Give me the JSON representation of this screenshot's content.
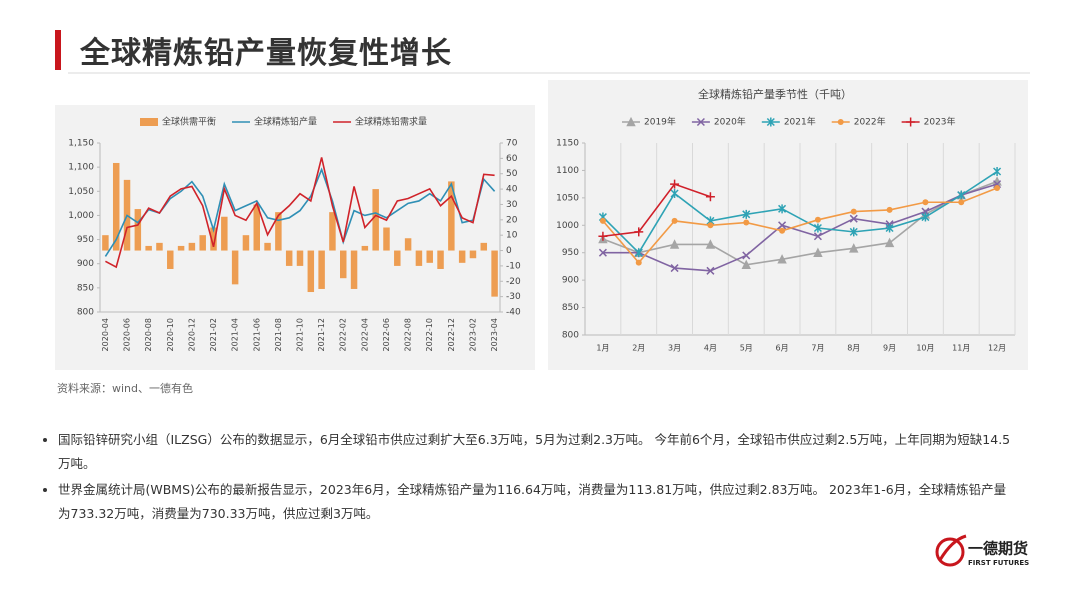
{
  "header": {
    "title": "全球精炼铅产量恢复性增长"
  },
  "chart_data": [
    {
      "type": "combo",
      "categories": [
        "2020-04",
        null,
        "2020-06",
        null,
        "2020-08",
        null,
        "2020-10",
        null,
        "2020-12",
        null,
        "2021-02",
        null,
        "2021-04",
        null,
        "2021-06",
        null,
        "2021-08",
        null,
        "2021-10",
        null,
        "2021-12",
        null,
        "2022-02",
        null,
        "2022-04",
        null,
        "2022-06",
        null,
        "2022-08",
        null,
        "2022-10",
        null,
        "2022-12",
        null,
        "2023-02",
        null,
        "2023-04"
      ],
      "series": [
        {
          "name": "全球供需平衡",
          "type": "bar",
          "axis": "y2",
          "color": "#ed9d52",
          "values": [
            10,
            57,
            46,
            27,
            3,
            5,
            -12,
            3,
            5,
            10,
            15,
            22,
            -22,
            10,
            30,
            5,
            25,
            -10,
            -10,
            -27,
            -25,
            25,
            -18,
            -25,
            3,
            40,
            15,
            -10,
            8,
            -10,
            -8,
            -12,
            45,
            -8,
            -5,
            5,
            -30
          ]
        },
        {
          "name": "全球精炼铅产量",
          "type": "line",
          "color": "#2f8fb5",
          "values": [
            915,
            950,
            1000,
            985,
            1012,
            1005,
            1035,
            1050,
            1070,
            1040,
            970,
            1065,
            1010,
            1020,
            1030,
            995,
            990,
            995,
            1010,
            1040,
            1095,
            1030,
            945,
            1010,
            1000,
            1005,
            995,
            1010,
            1025,
            1030,
            1045,
            1030,
            1065,
            985,
            990,
            1075,
            1050
          ]
        },
        {
          "name": "全球精炼铅需求量",
          "type": "line",
          "color": "#d0232a",
          "values": [
            905,
            893,
            975,
            980,
            1015,
            1005,
            1040,
            1055,
            1060,
            1020,
            935,
            1055,
            1000,
            990,
            1025,
            960,
            1000,
            1020,
            1045,
            1030,
            1120,
            1020,
            945,
            1060,
            975,
            1000,
            990,
            1030,
            1035,
            1045,
            1055,
            1020,
            1040,
            995,
            985,
            1085,
            1083
          ]
        }
      ],
      "ylim": [
        800,
        1150
      ],
      "yticks": [
        800,
        850,
        900,
        950,
        {
          "value": 1000,
          "label": "1,000"
        },
        {
          "value": 1050,
          "label": "1,050"
        },
        {
          "value": 1100,
          "label": "1,100"
        },
        {
          "value": 1150,
          "label": "1,150"
        }
      ],
      "y2lim": [
        -40,
        70
      ],
      "y2ticks": [
        -40,
        -30,
        -20,
        -10,
        0,
        10,
        20,
        30,
        40,
        50,
        60,
        70
      ],
      "grid": false
    },
    {
      "type": "line",
      "title": "全球精炼铅产量季节性（千吨）",
      "categories": [
        "1月",
        "2月",
        "3月",
        "4月",
        "5月",
        "6月",
        "7月",
        "8月",
        "9月",
        "10月",
        "11月",
        "12月"
      ],
      "series": [
        {
          "name": "2019年",
          "color": "#a5a5a5",
          "marker": "triangle",
          "values": [
            975,
            950,
            965,
            965,
            928,
            938,
            950,
            958,
            968,
            1020,
            1055,
            1080
          ]
        },
        {
          "name": "2020年",
          "color": "#8064a2",
          "marker": "cross",
          "values": [
            950,
            950,
            922,
            917,
            945,
            1000,
            980,
            1012,
            1002,
            1025,
            1055,
            1075
          ]
        },
        {
          "name": "2021年",
          "color": "#2ea3b5",
          "marker": "star",
          "values": [
            1015,
            950,
            1058,
            1008,
            1020,
            1030,
            995,
            988,
            995,
            1015,
            1055,
            1098
          ]
        },
        {
          "name": "2022年",
          "color": "#f29a45",
          "marker": "circle",
          "values": [
            1008,
            932,
            1008,
            1000,
            1005,
            990,
            1010,
            1025,
            1028,
            1042,
            1042,
            1068
          ]
        },
        {
          "name": "2023年",
          "color": "#d0202a",
          "marker": "plus",
          "values": [
            980,
            988,
            1075,
            1052,
            null,
            null,
            null,
            null,
            null,
            null,
            null,
            null
          ]
        }
      ],
      "ylim": [
        800,
        1150
      ],
      "yticks": [
        800,
        850,
        900,
        950,
        1000,
        1050,
        1100,
        1150
      ],
      "grid": true
    }
  ],
  "source": "资料来源：wind、一德有色",
  "bullets": [
    "国际铅锌研究小组（ILZSG）公布的数据显示，6月全球铅市供应过剩扩大至6.3万吨，5月为过剩2.3万吨。 今年前6个月，全球铅市供应过剩2.5万吨，上年同期为短缺14.5万吨。",
    "世界金属统计局(WBMS)公布的最新报告显示，2023年6月，全球精炼铅产量为116.64万吨，消费量为113.81万吨，供应过剩2.83万吨。 2023年1-6月，全球精炼铅产量为733.32万吨，消费量为730.33万吨，供应过剩3万吨。"
  ],
  "logo": {
    "name": "一德期货",
    "subtitle": "FIRST FUTURES"
  }
}
